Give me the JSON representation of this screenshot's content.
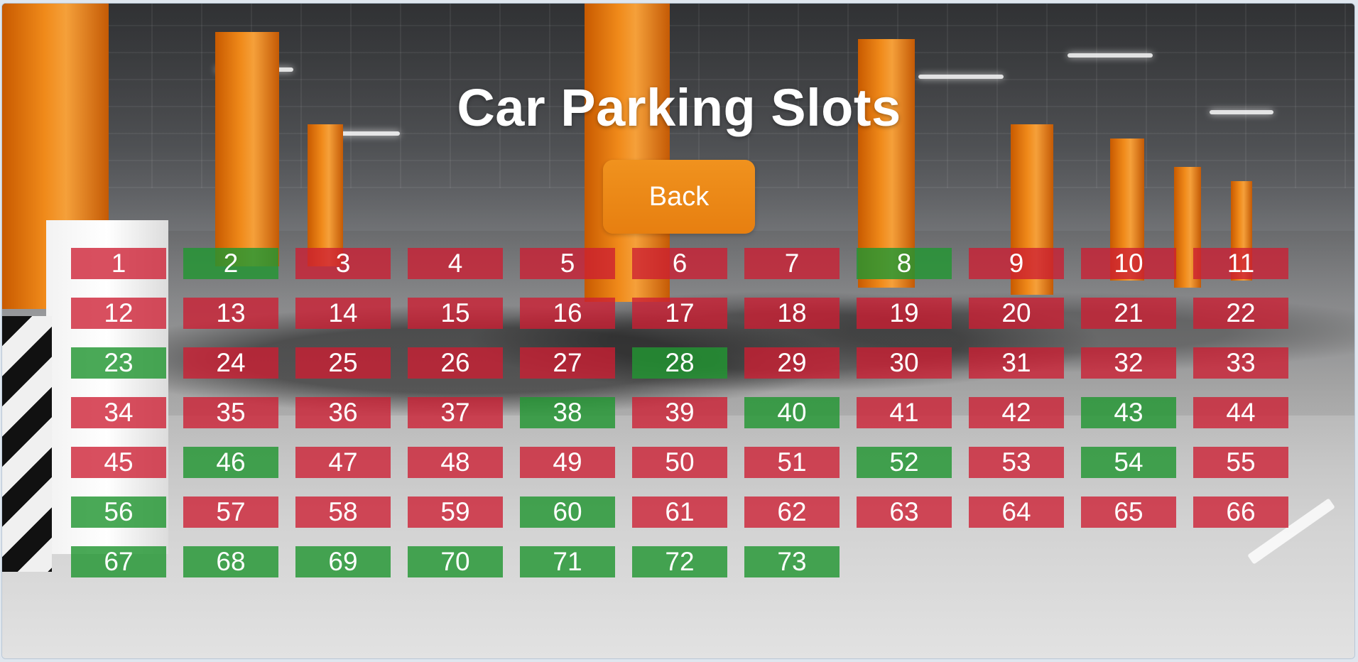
{
  "title": "Car Parking Slots",
  "back_label": "Back",
  "colors": {
    "occupied": "#cd1e32",
    "free": "#229632",
    "button": "#ec8716"
  },
  "slots": [
    {
      "number": "1",
      "status": "occupied"
    },
    {
      "number": "2",
      "status": "free"
    },
    {
      "number": "3",
      "status": "occupied"
    },
    {
      "number": "4",
      "status": "occupied"
    },
    {
      "number": "5",
      "status": "occupied"
    },
    {
      "number": "6",
      "status": "occupied"
    },
    {
      "number": "7",
      "status": "occupied"
    },
    {
      "number": "8",
      "status": "free"
    },
    {
      "number": "9",
      "status": "occupied"
    },
    {
      "number": "10",
      "status": "occupied"
    },
    {
      "number": "11",
      "status": "occupied"
    },
    {
      "number": "12",
      "status": "occupied"
    },
    {
      "number": "13",
      "status": "occupied"
    },
    {
      "number": "14",
      "status": "occupied"
    },
    {
      "number": "15",
      "status": "occupied"
    },
    {
      "number": "16",
      "status": "occupied"
    },
    {
      "number": "17",
      "status": "occupied"
    },
    {
      "number": "18",
      "status": "occupied"
    },
    {
      "number": "19",
      "status": "occupied"
    },
    {
      "number": "20",
      "status": "occupied"
    },
    {
      "number": "21",
      "status": "occupied"
    },
    {
      "number": "22",
      "status": "occupied"
    },
    {
      "number": "23",
      "status": "free"
    },
    {
      "number": "24",
      "status": "occupied"
    },
    {
      "number": "25",
      "status": "occupied"
    },
    {
      "number": "26",
      "status": "occupied"
    },
    {
      "number": "27",
      "status": "occupied"
    },
    {
      "number": "28",
      "status": "free"
    },
    {
      "number": "29",
      "status": "occupied"
    },
    {
      "number": "30",
      "status": "occupied"
    },
    {
      "number": "31",
      "status": "occupied"
    },
    {
      "number": "32",
      "status": "occupied"
    },
    {
      "number": "33",
      "status": "occupied"
    },
    {
      "number": "34",
      "status": "occupied"
    },
    {
      "number": "35",
      "status": "occupied"
    },
    {
      "number": "36",
      "status": "occupied"
    },
    {
      "number": "37",
      "status": "occupied"
    },
    {
      "number": "38",
      "status": "free"
    },
    {
      "number": "39",
      "status": "occupied"
    },
    {
      "number": "40",
      "status": "free"
    },
    {
      "number": "41",
      "status": "occupied"
    },
    {
      "number": "42",
      "status": "occupied"
    },
    {
      "number": "43",
      "status": "free"
    },
    {
      "number": "44",
      "status": "occupied"
    },
    {
      "number": "45",
      "status": "occupied"
    },
    {
      "number": "46",
      "status": "free"
    },
    {
      "number": "47",
      "status": "occupied"
    },
    {
      "number": "48",
      "status": "occupied"
    },
    {
      "number": "49",
      "status": "occupied"
    },
    {
      "number": "50",
      "status": "occupied"
    },
    {
      "number": "51",
      "status": "occupied"
    },
    {
      "number": "52",
      "status": "free"
    },
    {
      "number": "53",
      "status": "occupied"
    },
    {
      "number": "54",
      "status": "free"
    },
    {
      "number": "55",
      "status": "occupied"
    },
    {
      "number": "56",
      "status": "free"
    },
    {
      "number": "57",
      "status": "occupied"
    },
    {
      "number": "58",
      "status": "occupied"
    },
    {
      "number": "59",
      "status": "occupied"
    },
    {
      "number": "60",
      "status": "free"
    },
    {
      "number": "61",
      "status": "occupied"
    },
    {
      "number": "62",
      "status": "occupied"
    },
    {
      "number": "63",
      "status": "occupied"
    },
    {
      "number": "64",
      "status": "occupied"
    },
    {
      "number": "65",
      "status": "occupied"
    },
    {
      "number": "66",
      "status": "occupied"
    },
    {
      "number": "67",
      "status": "free"
    },
    {
      "number": "68",
      "status": "free"
    },
    {
      "number": "69",
      "status": "free"
    },
    {
      "number": "70",
      "status": "free"
    },
    {
      "number": "71",
      "status": "free"
    },
    {
      "number": "72",
      "status": "free"
    },
    {
      "number": "73",
      "status": "free"
    }
  ]
}
